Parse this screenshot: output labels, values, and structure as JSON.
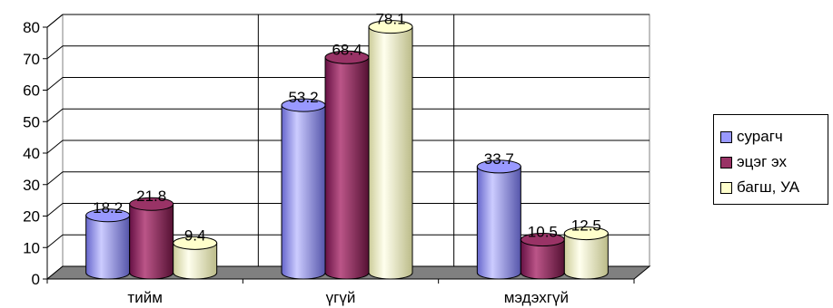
{
  "chart_data": {
    "type": "bar",
    "title": "",
    "xlabel": "",
    "ylabel": "",
    "categories": [
      "тийм",
      "үгүй",
      "мэдэхгүй"
    ],
    "series": [
      {
        "name": "сурагч",
        "values": [
          18.2,
          53.2,
          33.7
        ],
        "color": "#9999ff"
      },
      {
        "name": "эцэг эх",
        "values": [
          21.8,
          68.4,
          10.5
        ],
        "color": "#993366"
      },
      {
        "name": "багш, УА",
        "values": [
          9.4,
          78.1,
          12.5
        ],
        "color": "#ffffcc"
      }
    ],
    "ylim": [
      0,
      80
    ],
    "yticks": [
      0,
      10,
      20,
      30,
      40,
      50,
      60,
      70,
      80
    ],
    "grid": true,
    "legend_position": "right",
    "style": "3d-cylinder"
  }
}
